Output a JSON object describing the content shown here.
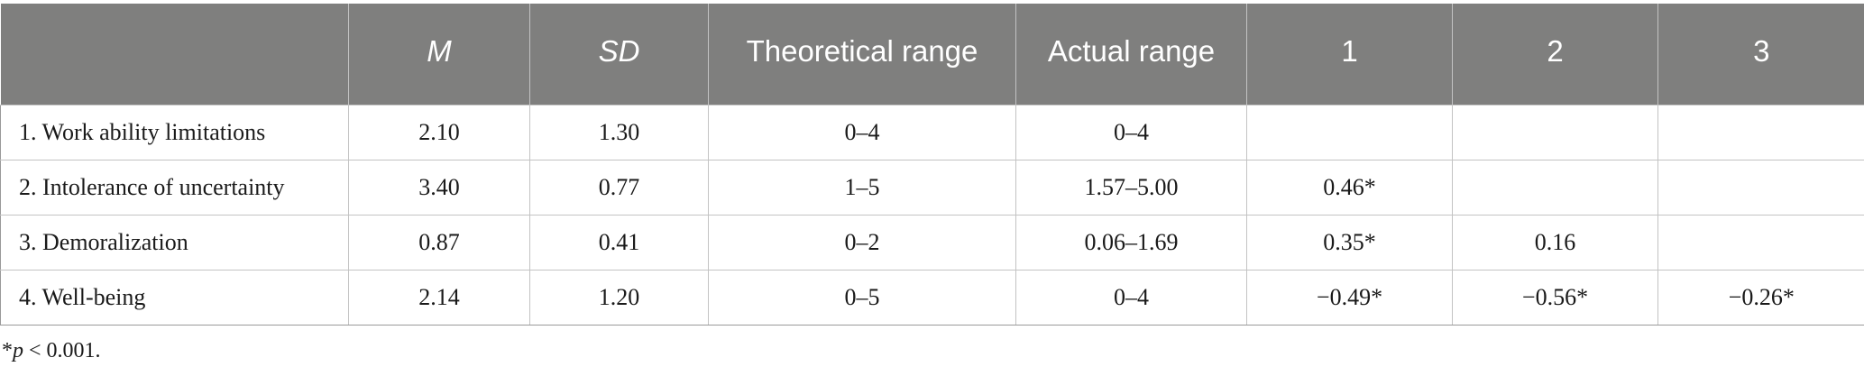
{
  "table": {
    "headers": [
      {
        "label": "",
        "italic": false
      },
      {
        "label": "M",
        "italic": true
      },
      {
        "label": "SD",
        "italic": true
      },
      {
        "label": "Theoretical range",
        "italic": false
      },
      {
        "label": "Actual range",
        "italic": false
      },
      {
        "label": "1",
        "italic": false
      },
      {
        "label": "2",
        "italic": false
      },
      {
        "label": "3",
        "italic": false
      }
    ],
    "rows": [
      [
        "1. Work ability limitations",
        "2.10",
        "1.30",
        "0–4",
        "0–4",
        "",
        "",
        ""
      ],
      [
        "2. Intolerance of uncertainty",
        "3.40",
        "0.77",
        "1–5",
        "1.57–5.00",
        "0.46*",
        "",
        ""
      ],
      [
        "3. Demoralization",
        "0.87",
        "0.41",
        "0–2",
        "0.06–1.69",
        "0.35*",
        "0.16",
        ""
      ],
      [
        "4. Well-being",
        "2.14",
        "1.20",
        "0–5",
        "0–4",
        "−0.49*",
        "−0.56*",
        "−0.26*"
      ]
    ]
  },
  "footnote": {
    "asterisk": "*",
    "p": "p",
    "rest": " < 0.001."
  }
}
